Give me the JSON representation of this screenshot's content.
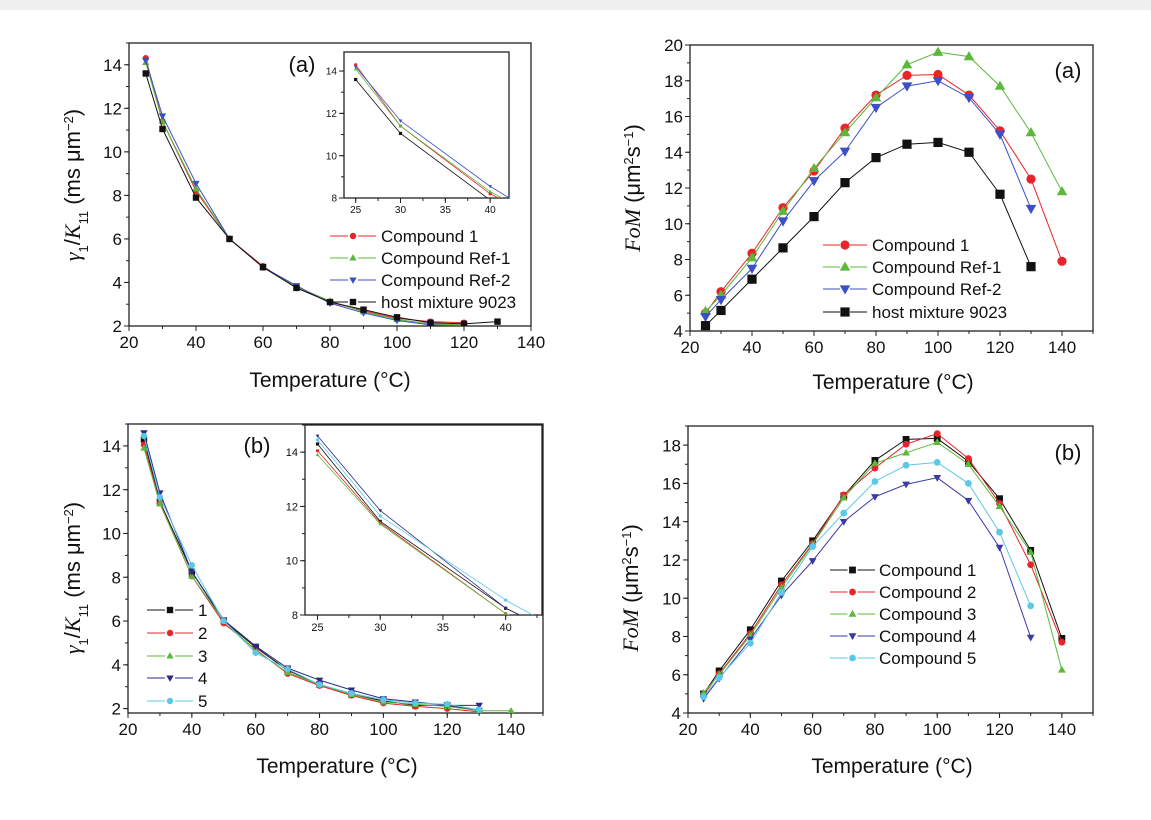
{
  "chart_data": [
    {
      "type": "line",
      "panel_label": "(a)",
      "xlabel": "Temperature (°C)",
      "ylabel": [
        {
          "text": "γ",
          "style": "italic"
        },
        {
          "text": "1",
          "shift": "sub"
        },
        {
          "text": "/"
        },
        {
          "text": "K",
          "style": "italic"
        },
        {
          "text": "11",
          "shift": "sub"
        },
        {
          "text": " (ms μm"
        },
        {
          "text": "−2",
          "shift": "sup"
        },
        {
          "text": ")"
        }
      ],
      "xlim": [
        20,
        140
      ],
      "ylim": [
        2,
        15
      ],
      "xticks": [
        20,
        40,
        60,
        80,
        100,
        120,
        140
      ],
      "yticks": [
        2,
        4,
        6,
        8,
        10,
        12,
        14
      ],
      "legend": "right",
      "series": [
        {
          "name": "Compound 1",
          "color": "#e8242a",
          "marker": "circle",
          "x": [
            25,
            30,
            40,
            50,
            60,
            70,
            80,
            90,
            100,
            110,
            120
          ],
          "y": [
            14.3,
            11.4,
            8.2,
            6.0,
            4.75,
            3.75,
            3.1,
            2.7,
            2.35,
            2.2,
            2.15
          ]
        },
        {
          "name": "Compound Ref-1",
          "color": "#5cb83a",
          "marker": "triangle-up",
          "x": [
            25,
            30,
            40,
            50,
            60,
            70,
            80,
            90,
            100,
            110,
            120
          ],
          "y": [
            14.1,
            11.4,
            8.3,
            6.0,
            4.7,
            3.8,
            3.15,
            2.65,
            2.3,
            2.1,
            2.05
          ]
        },
        {
          "name": "Compound Ref-2",
          "color": "#3d4fc4",
          "marker": "triangle-down",
          "x": [
            25,
            30,
            40,
            50,
            60,
            70,
            80,
            90,
            100,
            110,
            120
          ],
          "y": [
            14.2,
            11.65,
            8.55,
            6.0,
            4.7,
            3.85,
            3.05,
            2.6,
            2.25,
            2.05,
            2.0
          ]
        },
        {
          "name": "host mixture 9023",
          "color": "#111111",
          "marker": "square",
          "x": [
            25,
            30,
            40,
            50,
            60,
            70,
            80,
            90,
            100,
            110,
            120,
            130
          ],
          "y": [
            13.6,
            11.05,
            7.9,
            6.0,
            4.7,
            3.75,
            3.1,
            2.75,
            2.4,
            2.15,
            2.1,
            2.2
          ]
        }
      ],
      "inset": {
        "xlim": [
          23.7,
          42.1
        ],
        "ylim": [
          8,
          14.9
        ],
        "xticks": [
          25,
          30,
          35,
          40
        ],
        "yticks": [
          8,
          10,
          12,
          14
        ]
      }
    },
    {
      "type": "line",
      "panel_label": "(a)",
      "xlabel": "Temperature (°C)",
      "ylabel": [
        {
          "text": "FoM",
          "style": "italic"
        },
        {
          "text": " (μm"
        },
        {
          "text": "2",
          "shift": "sup"
        },
        {
          "text": "s"
        },
        {
          "text": "−1",
          "shift": "sup"
        },
        {
          "text": ")"
        }
      ],
      "xlim": [
        20,
        150
      ],
      "ylim": [
        4,
        20
      ],
      "xticks": [
        20,
        40,
        60,
        80,
        100,
        120,
        140
      ],
      "yticks": [
        4,
        6,
        8,
        10,
        12,
        14,
        16,
        18,
        20
      ],
      "legend": "bottom-center",
      "series": [
        {
          "name": "Compound 1",
          "color": "#e8242a",
          "marker": "circle",
          "x": [
            25,
            30,
            40,
            50,
            60,
            70,
            80,
            90,
            100,
            110,
            120,
            130,
            140
          ],
          "y": [
            5.0,
            6.2,
            8.35,
            10.9,
            12.95,
            15.35,
            17.2,
            18.3,
            18.35,
            17.2,
            15.2,
            12.5,
            7.9
          ]
        },
        {
          "name": "Compound Ref-1",
          "color": "#5cb83a",
          "marker": "triangle-up",
          "x": [
            25,
            30,
            40,
            50,
            60,
            70,
            80,
            90,
            100,
            110,
            120,
            130,
            140
          ],
          "y": [
            5.1,
            6.0,
            8.1,
            10.7,
            13.1,
            15.1,
            17.05,
            18.9,
            19.6,
            19.35,
            17.7,
            15.1,
            11.8
          ]
        },
        {
          "name": "Compound Ref-2",
          "color": "#3d4fc4",
          "marker": "triangle-down",
          "x": [
            25,
            30,
            40,
            50,
            60,
            70,
            80,
            90,
            100,
            110,
            120,
            130
          ],
          "y": [
            4.8,
            5.75,
            7.5,
            10.15,
            12.4,
            14.05,
            16.5,
            17.7,
            18.0,
            17.05,
            15.0,
            10.85
          ]
        },
        {
          "name": "host mixture 9023",
          "color": "#111111",
          "marker": "square",
          "x": [
            25,
            30,
            40,
            50,
            60,
            70,
            80,
            90,
            100,
            110,
            120,
            130
          ],
          "y": [
            4.3,
            5.15,
            6.9,
            8.65,
            10.4,
            12.3,
            13.7,
            14.45,
            14.55,
            14.0,
            11.65,
            7.6
          ]
        }
      ]
    },
    {
      "type": "line",
      "panel_label": "(b)",
      "xlabel": "Temperature (°C)",
      "ylabel": [
        {
          "text": "γ",
          "style": "italic"
        },
        {
          "text": "1",
          "shift": "sub"
        },
        {
          "text": "/"
        },
        {
          "text": "K",
          "style": "italic"
        },
        {
          "text": "11",
          "shift": "sub"
        },
        {
          "text": " (ms μm"
        },
        {
          "text": "−2",
          "shift": "sup"
        },
        {
          "text": ")"
        }
      ],
      "xlim": [
        20,
        150
      ],
      "ylim": [
        1.8,
        15
      ],
      "xticks": [
        20,
        40,
        60,
        80,
        100,
        120,
        140
      ],
      "yticks": [
        2,
        4,
        6,
        8,
        10,
        12,
        14
      ],
      "legend": "left",
      "series": [
        {
          "name": "1",
          "color": "#111111",
          "marker": "square",
          "x": [
            25,
            30,
            40,
            50,
            60,
            70,
            80,
            90,
            100,
            110,
            120,
            130
          ],
          "y": [
            14.3,
            11.45,
            8.25,
            6.0,
            4.8,
            3.75,
            3.1,
            2.65,
            2.35,
            2.15,
            2.15,
            1.9
          ]
        },
        {
          "name": "2",
          "color": "#e8242a",
          "marker": "circle",
          "x": [
            25,
            30,
            40,
            50,
            60,
            70,
            80,
            90,
            100,
            110,
            120,
            130
          ],
          "y": [
            14.05,
            11.4,
            8.05,
            5.9,
            4.7,
            3.6,
            3.05,
            2.6,
            2.25,
            2.1,
            2.0,
            1.85
          ]
        },
        {
          "name": "3",
          "color": "#5cb83a",
          "marker": "triangle-up",
          "x": [
            25,
            30,
            40,
            50,
            60,
            70,
            80,
            90,
            100,
            110,
            120,
            130,
            140
          ],
          "y": [
            13.9,
            11.35,
            8.05,
            6.0,
            4.65,
            3.65,
            3.1,
            2.65,
            2.3,
            2.2,
            2.1,
            1.9,
            1.9
          ]
        },
        {
          "name": "4",
          "color": "#2a2a8c",
          "marker": "triangle-down",
          "x": [
            25,
            30,
            40,
            50,
            60,
            70,
            80,
            90,
            100,
            110,
            120,
            130
          ],
          "y": [
            14.6,
            11.85,
            8.25,
            6.05,
            4.85,
            3.85,
            3.3,
            2.85,
            2.45,
            2.3,
            2.15,
            2.15
          ]
        },
        {
          "name": "5",
          "color": "#5bc8e8",
          "marker": "circle",
          "x": [
            25,
            30,
            40,
            50,
            60,
            70,
            80,
            90,
            100,
            110,
            120,
            130
          ],
          "y": [
            14.45,
            11.65,
            8.55,
            6.0,
            4.55,
            3.8,
            3.1,
            2.7,
            2.4,
            2.25,
            2.2,
            1.95
          ]
        }
      ],
      "inset": {
        "xlim": [
          24.0,
          42.9
        ],
        "ylim": [
          8,
          15
        ],
        "xticks": [
          25,
          30,
          35,
          40
        ],
        "yticks": [
          8,
          10,
          12,
          14
        ]
      }
    },
    {
      "type": "line",
      "panel_label": "(b)",
      "xlabel": "Temperature (°C)",
      "ylabel": [
        {
          "text": "FoM",
          "style": "italic"
        },
        {
          "text": " (μm"
        },
        {
          "text": "2",
          "shift": "sup"
        },
        {
          "text": "s"
        },
        {
          "text": "−1",
          "shift": "sup"
        },
        {
          "text": ")"
        }
      ],
      "xlim": [
        20,
        150
      ],
      "ylim": [
        4,
        19
      ],
      "xticks": [
        20,
        40,
        60,
        80,
        100,
        120,
        140
      ],
      "yticks": [
        4,
        6,
        8,
        10,
        12,
        14,
        16,
        18
      ],
      "legend": "bottom-center",
      "series": [
        {
          "name": "Compound 1",
          "color": "#111111",
          "marker": "square",
          "x": [
            25,
            30,
            40,
            50,
            60,
            70,
            80,
            90,
            100,
            110,
            120,
            130,
            140
          ],
          "y": [
            5.0,
            6.2,
            8.35,
            10.9,
            13.0,
            15.35,
            17.2,
            18.3,
            18.35,
            17.15,
            15.2,
            12.5,
            7.9
          ]
        },
        {
          "name": "Compound 2",
          "color": "#e8242a",
          "marker": "circle",
          "x": [
            25,
            30,
            40,
            50,
            60,
            70,
            80,
            90,
            100,
            110,
            120,
            130,
            140
          ],
          "y": [
            4.95,
            6.05,
            8.15,
            10.7,
            12.85,
            15.4,
            16.8,
            18.05,
            18.6,
            17.3,
            14.95,
            11.75,
            7.7
          ]
        },
        {
          "name": "Compound 3",
          "color": "#5cb83a",
          "marker": "triangle-up",
          "x": [
            25,
            30,
            40,
            50,
            60,
            70,
            80,
            90,
            100,
            110,
            120,
            130,
            140
          ],
          "y": [
            5.05,
            6.0,
            8.05,
            10.55,
            12.8,
            15.25,
            17.05,
            17.6,
            18.15,
            17.0,
            14.8,
            12.4,
            6.25
          ]
        },
        {
          "name": "Compound 4",
          "color": "#3a3aa8",
          "marker": "triangle-down",
          "x": [
            25,
            30,
            40,
            50,
            60,
            70,
            80,
            90,
            100,
            110,
            120,
            130
          ],
          "y": [
            4.75,
            5.8,
            7.85,
            10.15,
            11.95,
            14.0,
            15.3,
            15.95,
            16.3,
            15.1,
            12.65,
            7.95
          ]
        },
        {
          "name": "Compound 5",
          "color": "#5bc8e8",
          "marker": "circle",
          "x": [
            25,
            30,
            40,
            50,
            60,
            70,
            80,
            90,
            100,
            110,
            120,
            130
          ],
          "y": [
            4.85,
            5.85,
            7.65,
            10.3,
            12.7,
            14.45,
            16.1,
            16.95,
            17.1,
            16.0,
            13.45,
            9.6
          ]
        }
      ]
    }
  ]
}
